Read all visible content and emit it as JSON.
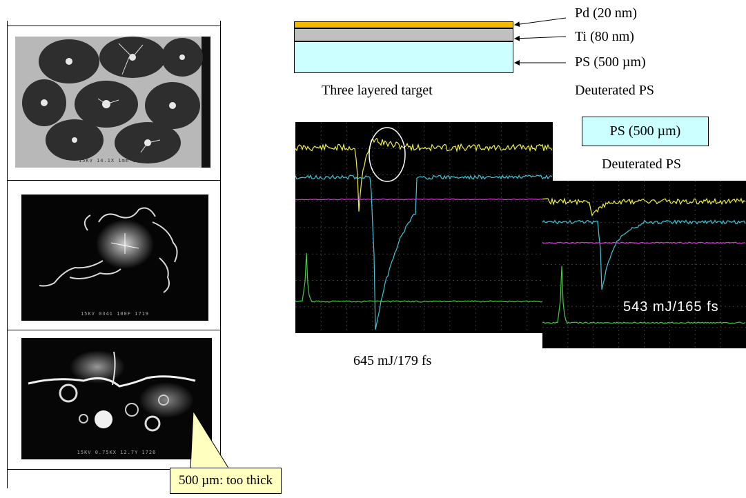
{
  "target": {
    "layers": [
      {
        "label": "Pd (20 nm)",
        "color": "#f5b800"
      },
      {
        "label": "Ti (80 nm)",
        "color": "#c0c0c0"
      },
      {
        "label": "PS (500 µm)",
        "color": "#ccffff"
      }
    ],
    "caption": "Three layered target",
    "side_caption": "Deuterated PS"
  },
  "second_target": {
    "box_label": "PS (500 µm)",
    "caption": "Deuterated PS"
  },
  "scope_1": {
    "caption": "645 mJ/179 fs",
    "trace_colors": [
      "#f0f040",
      "#40c8d8",
      "#d040d0",
      "#40d040"
    ]
  },
  "scope_2": {
    "inline_label": "543 mJ/165 fs"
  },
  "micrographs": [
    {
      "caption": "15KV 14.1X 1mm 1718"
    },
    {
      "caption": "15KV 0341 100F 1719"
    },
    {
      "caption": "15KV 0.75KX 12.7Y 1726"
    }
  ],
  "callout": {
    "text": "500 µm: too thick",
    "color": "#ffffc0"
  }
}
